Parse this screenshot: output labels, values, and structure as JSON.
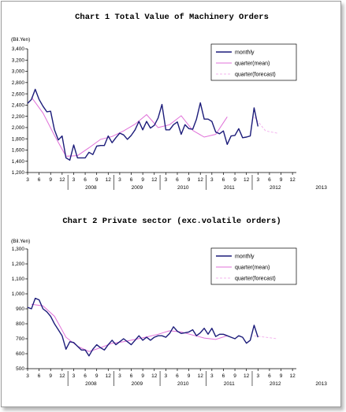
{
  "chart_data": [
    {
      "type": "line",
      "title": "Chart 1 Total Value of Machinery Orders",
      "unit": "(Bil.Yen)",
      "ylim": [
        1200,
        3400
      ],
      "yticks": [
        1200,
        1400,
        1600,
        1800,
        2000,
        2200,
        2400,
        2600,
        2800,
        3000,
        3200,
        3400
      ],
      "ytick_labels": [
        "1,200",
        "1,400",
        "1,600",
        "1,800",
        "2,000",
        "2,200",
        "2,400",
        "2,600",
        "2,800",
        "3,000",
        "3,200",
        "3,400"
      ],
      "month_ticks": [
        "3",
        "6",
        "9",
        "12",
        "3",
        "6",
        "9",
        "12",
        "3",
        "6",
        "9",
        "12",
        "3",
        "6",
        "9",
        "12",
        "3",
        "6",
        "9",
        "12",
        "3",
        "6",
        "9",
        "12"
      ],
      "year_labels": [
        "2008",
        "2009",
        "2010",
        "2011",
        "2012",
        "2013"
      ],
      "legend": {
        "placement": "top-right",
        "entries": [
          "monthly",
          "quarter(mean)",
          "quarter(forecast)"
        ]
      },
      "colors": {
        "monthly": "#1c1c7a",
        "mean": "#e070d8",
        "forecast": "#f3b4ee"
      },
      "grid": false,
      "series": [
        {
          "name": "monthly",
          "start": "2007-03",
          "values": [
            2430,
            2500,
            2680,
            2500,
            2380,
            2280,
            2290,
            1960,
            1780,
            1850,
            1460,
            1420,
            1690,
            1460,
            1460,
            1460,
            1560,
            1520,
            1670,
            1680,
            1680,
            1850,
            1730,
            1820,
            1900,
            1870,
            1790,
            1860,
            1960,
            2110,
            1960,
            2110,
            1990,
            2040,
            2170,
            2410,
            1960,
            1960,
            2050,
            2100,
            1880,
            2050,
            1980,
            1970,
            2150,
            2440,
            2150,
            2150,
            2110,
            1920,
            1890,
            1940,
            1700,
            1850,
            1860,
            1980,
            1820,
            1830,
            1850,
            2350,
            2020
          ]
        },
        {
          "name": "quarter(mean)",
          "values": [
            2540,
            2260,
            1860,
            1490,
            1500,
            1640,
            1790,
            1840,
            1940,
            2060,
            2230,
            2000,
            2050,
            2210,
            1950,
            1830,
            1880,
            2190
          ]
        },
        {
          "name": "quarter(forecast)",
          "values": [
            1940,
            1900
          ]
        }
      ]
    },
    {
      "type": "line",
      "title": "Chart 2 Private sector (exc.volatile orders)",
      "unit": "(Bil.Yen)",
      "ylim": [
        500,
        1300
      ],
      "yticks": [
        500,
        600,
        700,
        800,
        900,
        1000,
        1100,
        1200,
        1300
      ],
      "ytick_labels": [
        "500",
        "600",
        "700",
        "800",
        "900",
        "1,000",
        "1,100",
        "1,200",
        "1,300"
      ],
      "month_ticks": [
        "3",
        "6",
        "9",
        "12",
        "3",
        "6",
        "9",
        "12",
        "3",
        "6",
        "9",
        "12",
        "3",
        "6",
        "9",
        "12",
        "3",
        "6",
        "9",
        "12",
        "3",
        "6",
        "9",
        "12"
      ],
      "year_labels": [
        "2008",
        "2009",
        "2010",
        "2011",
        "2012",
        "2013"
      ],
      "legend": {
        "placement": "top-right",
        "entries": [
          "monthly",
          "quarter(mean)",
          "quarter(forecast)"
        ]
      },
      "colors": {
        "monthly": "#1c1c7a",
        "mean": "#e070d8",
        "forecast": "#f3b4ee"
      },
      "grid": false,
      "series": [
        {
          "name": "monthly",
          "start": "2007-03",
          "values": [
            910,
            900,
            970,
            960,
            900,
            880,
            850,
            800,
            760,
            720,
            630,
            680,
            675,
            650,
            625,
            625,
            585,
            630,
            660,
            640,
            625,
            660,
            690,
            660,
            680,
            700,
            680,
            660,
            690,
            720,
            690,
            710,
            690,
            710,
            720,
            720,
            710,
            735,
            780,
            750,
            735,
            740,
            745,
            760,
            720,
            740,
            770,
            730,
            770,
            715,
            730,
            730,
            720,
            710,
            700,
            720,
            710,
            670,
            690,
            790,
            710
          ]
        },
        {
          "name": "quarter(mean)",
          "values": [
            930,
            920,
            850,
            710,
            650,
            615,
            640,
            670,
            680,
            695,
            712,
            730,
            753,
            745,
            725,
            705,
            695,
            720
          ]
        },
        {
          "name": "quarter(forecast)",
          "values": [
            710,
            700
          ]
        }
      ]
    }
  ]
}
